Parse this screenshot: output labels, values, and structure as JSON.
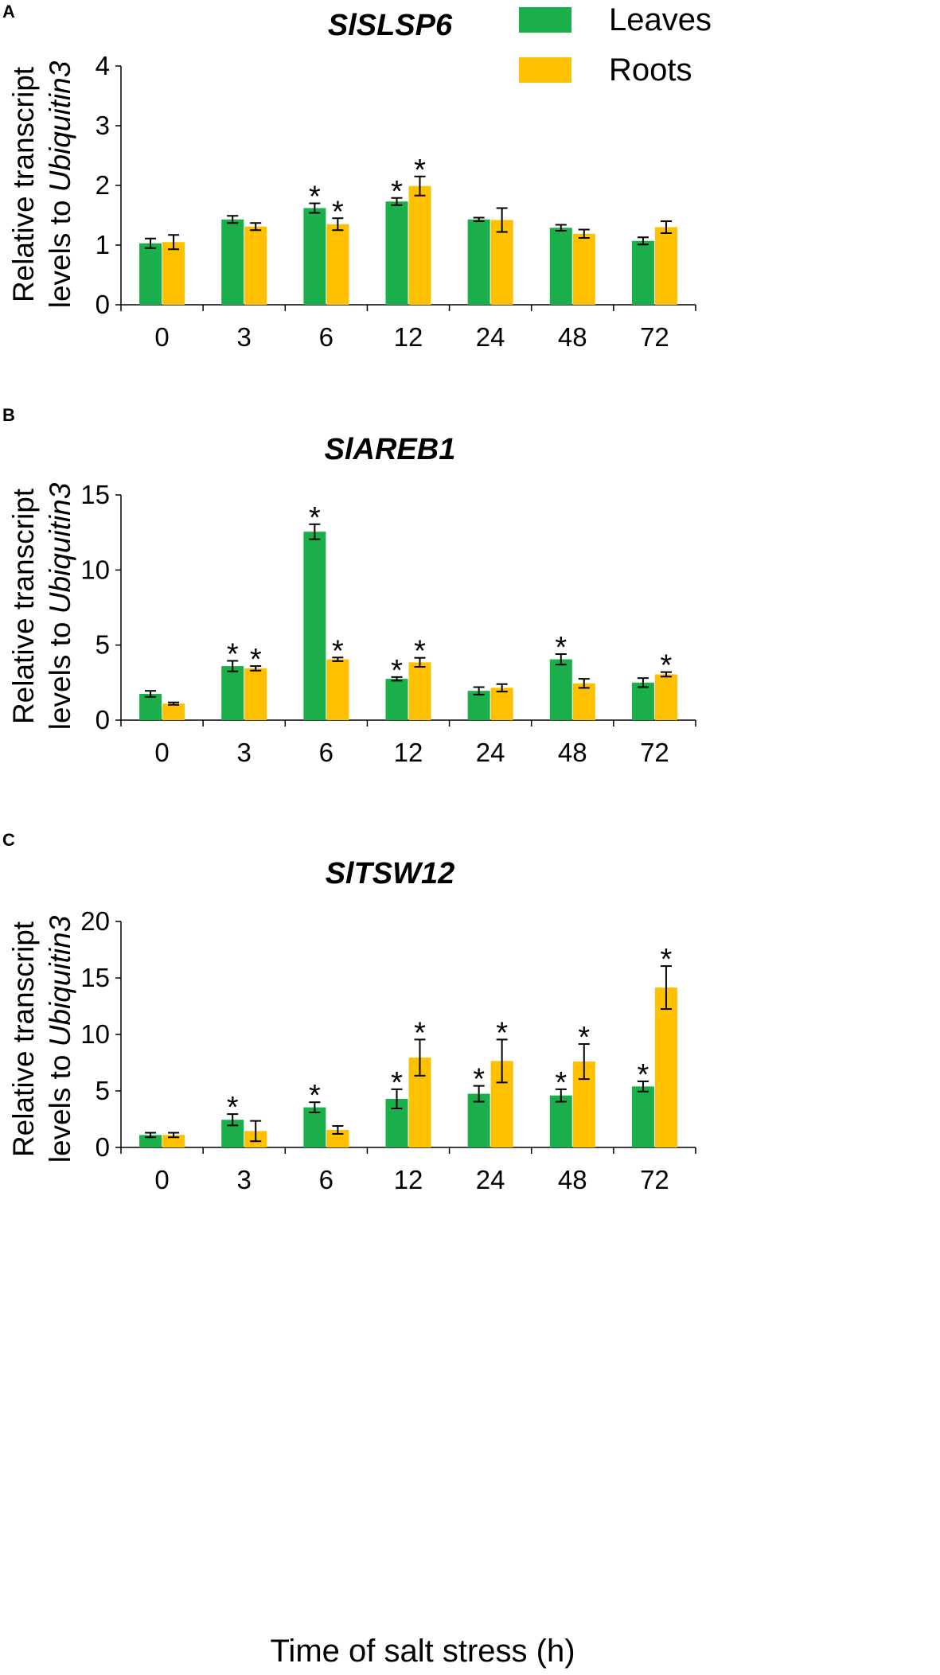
{
  "colors": {
    "leaves": "#1aaf4b",
    "roots": "#ffc000",
    "axis": "#000000"
  },
  "legend": {
    "entries": [
      "Leaves",
      "Roots"
    ]
  },
  "xlabel": "Time of salt stress (h)",
  "chart_data": [
    {
      "type": "bar",
      "panel": "A",
      "title": "SlSLSP6",
      "ylabel_plain": "Relative transcript",
      "ylabel_line2_prefix": "levels to ",
      "ylabel_line2_italic": "Ubiquitin3",
      "categories": [
        "0",
        "3",
        "6",
        "12",
        "24",
        "48",
        "72"
      ],
      "ylim": [
        0,
        4
      ],
      "yticks": [
        "0",
        "1",
        "2",
        "3",
        "4"
      ],
      "series": [
        {
          "name": "Leaves",
          "values": [
            1.03,
            1.43,
            1.62,
            1.73,
            1.43,
            1.29,
            1.07
          ],
          "errors": [
            0.08,
            0.06,
            0.08,
            0.06,
            0.03,
            0.05,
            0.06
          ],
          "sig": [
            false,
            false,
            true,
            true,
            false,
            false,
            false
          ]
        },
        {
          "name": "Roots",
          "values": [
            1.05,
            1.31,
            1.35,
            1.99,
            1.42,
            1.19,
            1.3
          ],
          "errors": [
            0.12,
            0.06,
            0.1,
            0.16,
            0.2,
            0.07,
            0.1
          ],
          "sig": [
            false,
            false,
            true,
            true,
            false,
            false,
            false
          ]
        }
      ],
      "star": "*"
    },
    {
      "type": "bar",
      "panel": "B",
      "title": "SlAREB1",
      "ylabel_plain": "Relative transcript",
      "ylabel_line2_prefix": "levels to ",
      "ylabel_line2_italic": "Ubiquitin3",
      "categories": [
        "0",
        "3",
        "6",
        "12",
        "24",
        "48",
        "72"
      ],
      "ylim": [
        0,
        15
      ],
      "yticks": [
        "0",
        "5",
        "10",
        "15"
      ],
      "series": [
        {
          "name": "Leaves",
          "values": [
            1.75,
            3.6,
            12.55,
            2.75,
            1.95,
            4.05,
            2.5
          ],
          "errors": [
            0.2,
            0.35,
            0.5,
            0.12,
            0.25,
            0.35,
            0.3
          ],
          "sig": [
            false,
            true,
            true,
            true,
            false,
            true,
            false
          ]
        },
        {
          "name": "Roots",
          "values": [
            1.1,
            3.45,
            4.05,
            3.85,
            2.15,
            2.45,
            3.05
          ],
          "errors": [
            0.08,
            0.15,
            0.12,
            0.3,
            0.25,
            0.3,
            0.15
          ],
          "sig": [
            false,
            true,
            true,
            true,
            false,
            false,
            true
          ]
        }
      ],
      "star": "*"
    },
    {
      "type": "bar",
      "panel": "C",
      "title": "SlTSW12",
      "ylabel_plain": "Relative transcript",
      "ylabel_line2_prefix": "levels to ",
      "ylabel_line2_italic": "Ubiquitin3",
      "categories": [
        "0",
        "3",
        "6",
        "12",
        "24",
        "48",
        "72"
      ],
      "ylim": [
        0,
        20
      ],
      "yticks": [
        "0",
        "5",
        "10",
        "15",
        "20"
      ],
      "series": [
        {
          "name": "Leaves",
          "values": [
            1.1,
            2.45,
            3.55,
            4.3,
            4.75,
            4.6,
            5.4
          ],
          "errors": [
            0.2,
            0.5,
            0.45,
            0.85,
            0.7,
            0.55,
            0.45
          ],
          "sig": [
            false,
            true,
            true,
            true,
            true,
            true,
            true
          ]
        },
        {
          "name": "Roots",
          "values": [
            1.1,
            1.45,
            1.55,
            7.95,
            7.65,
            7.6,
            14.15
          ],
          "errors": [
            0.2,
            0.9,
            0.35,
            1.6,
            1.9,
            1.55,
            1.9
          ],
          "sig": [
            false,
            false,
            false,
            true,
            true,
            true,
            true
          ]
        }
      ],
      "star": "*"
    }
  ]
}
